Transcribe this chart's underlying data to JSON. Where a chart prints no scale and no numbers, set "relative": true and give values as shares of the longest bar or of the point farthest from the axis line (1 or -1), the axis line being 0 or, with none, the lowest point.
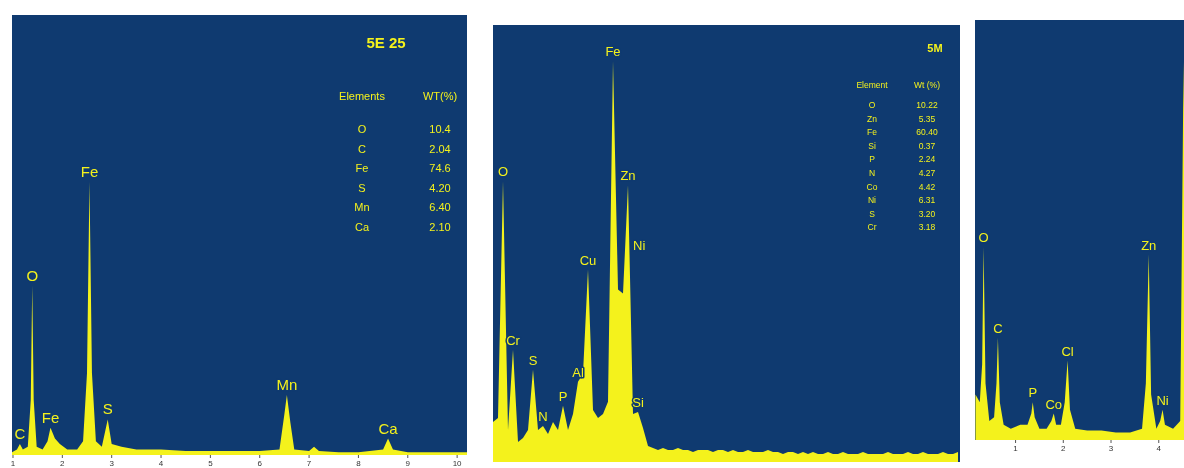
{
  "chart_data": [
    {
      "type": "area",
      "title": "5E 25",
      "relative": true,
      "color": "#f4f21c",
      "xlim": [
        0.98,
        10.2
      ],
      "xticks": [
        1,
        2,
        3,
        4,
        5,
        6,
        7,
        8,
        9,
        10
      ],
      "x": [
        0.98,
        1.08,
        1.14,
        1.2,
        1.3,
        1.36,
        1.39,
        1.42,
        1.48,
        1.6,
        1.7,
        1.76,
        1.85,
        1.95,
        2.1,
        2.3,
        2.42,
        2.5,
        2.55,
        2.6,
        2.68,
        2.8,
        2.92,
        3.0,
        3.2,
        3.5,
        4.0,
        4.5,
        5.0,
        5.5,
        6.0,
        6.4,
        6.5,
        6.55,
        6.62,
        6.7,
        7.0,
        7.1,
        7.2,
        7.6,
        8.0,
        8.5,
        8.6,
        8.7,
        9.0,
        9.5,
        10.2
      ],
      "values": [
        0.01,
        0.02,
        0.04,
        0.02,
        0.03,
        0.2,
        0.62,
        0.2,
        0.03,
        0.02,
        0.05,
        0.1,
        0.06,
        0.04,
        0.02,
        0.02,
        0.05,
        0.3,
        1,
        0.3,
        0.05,
        0.03,
        0.13,
        0.04,
        0.03,
        0.02,
        0.02,
        0.015,
        0.015,
        0.015,
        0.015,
        0.02,
        0.15,
        0.22,
        0.12,
        0.02,
        0.015,
        0.03,
        0.015,
        0.01,
        0.01,
        0.02,
        0.06,
        0.02,
        0.01,
        0.01,
        0.01
      ],
      "annotations": [
        {
          "text": "C",
          "x": 1.14,
          "y": 0.04
        },
        {
          "text": "O",
          "x": 1.39,
          "y": 0.62
        },
        {
          "text": "Fe",
          "x": 1.76,
          "y": 0.1
        },
        {
          "text": "Fe",
          "x": 2.55,
          "y": 1
        },
        {
          "text": "S",
          "x": 2.92,
          "y": 0.13
        },
        {
          "text": "Mn",
          "x": 6.55,
          "y": 0.22
        },
        {
          "text": "Ca",
          "x": 8.6,
          "y": 0.06
        },
        "Elements",
        "WT(%)",
        "O",
        "10.4",
        "C",
        "2.04",
        "Fe",
        "74.6",
        "S",
        "4.20",
        "Mn",
        "6.40",
        "Ca",
        "2.10"
      ]
    },
    {
      "type": "area",
      "title": "5M",
      "relative": true,
      "color": "#f4f21c",
      "categories": [
        null,
        null,
        null,
        null,
        null,
        null,
        null,
        null,
        null,
        null,
        null,
        null,
        null,
        null,
        null,
        null,
        null,
        null,
        null,
        null,
        null,
        null,
        null,
        null,
        null,
        null,
        null,
        null,
        null,
        null,
        null,
        null,
        null,
        null,
        null,
        null,
        null,
        null,
        null,
        null,
        null,
        null,
        null,
        null,
        null,
        null,
        null,
        null,
        null,
        null,
        null,
        null,
        null,
        null,
        null,
        null,
        null,
        null,
        null,
        null,
        null,
        null,
        null,
        null,
        null,
        null,
        null,
        null,
        null,
        null,
        null,
        null,
        null,
        null,
        null,
        null,
        null,
        null,
        null,
        null,
        null,
        null,
        null,
        null,
        null,
        null,
        null,
        null,
        null,
        null,
        null,
        null,
        null,
        null
      ],
      "values": [
        0.1,
        0.11,
        0.7,
        0.08,
        0.28,
        0.05,
        0.06,
        0.08,
        0.23,
        0.08,
        0.09,
        0.07,
        0.1,
        0.08,
        0.14,
        0.08,
        0.12,
        0.2,
        0.22,
        0.48,
        0.13,
        0.11,
        0.12,
        0.15,
        1.0,
        0.43,
        0.42,
        0.69,
        0.12,
        0.125,
        0.085,
        0.04,
        0.035,
        0.03,
        0.035,
        0.03,
        0.03,
        0.035,
        0.03,
        0.03,
        0.025,
        0.03,
        0.03,
        0.03,
        0.025,
        0.03,
        0.03,
        0.025,
        0.03,
        0.025,
        0.025,
        0.03,
        0.025,
        0.025,
        0.025,
        0.03,
        0.025,
        0.025,
        0.02,
        0.025,
        0.025,
        0.02,
        0.025,
        0.02,
        0.025,
        0.02,
        0.02,
        0.025,
        0.02,
        0.02,
        0.025,
        0.02,
        0.02,
        0.02,
        0.025,
        0.02,
        0.02,
        0.02,
        0.02,
        0.025,
        0.02,
        0.02,
        0.02,
        0.025,
        0.02,
        0.02,
        0.025,
        0.02,
        0.02,
        0.02,
        0.025,
        0.02,
        0.02,
        0.025
      ],
      "annotations": [
        {
          "text": "O",
          "y": 0.7
        },
        {
          "text": "Cr",
          "y": 0.28
        },
        {
          "text": "S",
          "y": 0.23
        },
        {
          "text": "N",
          "y": 0.09
        },
        {
          "text": "P",
          "y": 0.14
        },
        {
          "text": "Al",
          "y": 0.2
        },
        {
          "text": "Cu",
          "y": 0.48
        },
        {
          "text": "Fe",
          "y": 1.0
        },
        {
          "text": "Zn",
          "y": 0.69
        },
        {
          "text": "Si",
          "y": 0.125
        },
        "Ni",
        "Element",
        "Wt (%)",
        "O",
        "10.22",
        "Zn",
        "5.35",
        "Fe",
        "60.40",
        "Si",
        "0.37",
        "P",
        "2.24",
        "N",
        "4.27",
        "Co",
        "4.42",
        "Ni",
        "6.31",
        "S",
        "3.20",
        "Cr",
        "3.18"
      ]
    },
    {
      "type": "area",
      "relative": true,
      "color": "#f4f21c",
      "xlim": [
        0.15,
        4.55
      ],
      "xticks": [
        1,
        2,
        3,
        4
      ],
      "x": [
        0.16,
        0.25,
        0.3,
        0.33,
        0.37,
        0.45,
        0.55,
        0.6,
        0.63,
        0.67,
        0.75,
        0.9,
        1.1,
        1.25,
        1.33,
        1.36,
        1.4,
        1.5,
        1.65,
        1.75,
        1.8,
        1.85,
        1.95,
        2.03,
        2.09,
        2.14,
        2.25,
        2.5,
        2.8,
        3.1,
        3.4,
        3.65,
        3.73,
        3.79,
        3.84,
        3.95,
        4.03,
        4.08,
        4.13,
        4.3,
        4.45,
        4.52,
        4.55
      ],
      "values": [
        0.12,
        0.1,
        0.2,
        0.51,
        0.15,
        0.05,
        0.06,
        0.15,
        0.27,
        0.1,
        0.04,
        0.03,
        0.04,
        0.04,
        0.07,
        0.1,
        0.06,
        0.03,
        0.03,
        0.05,
        0.07,
        0.04,
        0.04,
        0.1,
        0.21,
        0.08,
        0.03,
        0.025,
        0.025,
        0.02,
        0.02,
        0.03,
        0.15,
        0.49,
        0.12,
        0.03,
        0.05,
        0.08,
        0.04,
        0.03,
        0.05,
        1.0,
        0.6
      ],
      "annotations": [
        {
          "text": "O",
          "x": 0.33,
          "y": 0.51
        },
        {
          "text": "C",
          "x": 0.63,
          "y": 0.27
        },
        {
          "text": "P",
          "x": 1.36,
          "y": 0.1
        },
        {
          "text": "Co",
          "x": 1.8,
          "y": 0.07
        },
        {
          "text": "Cl",
          "x": 2.09,
          "y": 0.21
        },
        {
          "text": "Zn",
          "x": 3.79,
          "y": 0.49
        },
        {
          "text": "Ni",
          "x": 4.08,
          "y": 0.08
        }
      ]
    }
  ]
}
